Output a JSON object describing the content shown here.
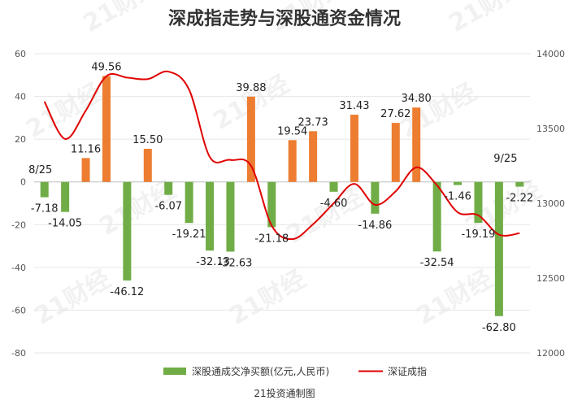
{
  "watermark": "21财经",
  "chart_data": {
    "type": "bar",
    "title": "深成指走势与深股通资金情况",
    "source": "21投资通制图",
    "date_labels": [
      {
        "index": 0,
        "text": "8/25"
      },
      {
        "index": 22,
        "text": "9/25"
      }
    ],
    "left_axis": {
      "min": -80,
      "max": 60,
      "step": 20
    },
    "right_axis": {
      "min": 12000,
      "max": 14000,
      "step": 500
    },
    "series": [
      {
        "name": "深股通成交净买额(亿元,人民币)",
        "kind": "bar",
        "axis": "left",
        "values": [
          -7.18,
          -14.05,
          11.16,
          49.56,
          -46.12,
          15.5,
          -6.07,
          -19.21,
          -32.13,
          -32.63,
          39.88,
          -21.18,
          19.54,
          23.73,
          -4.6,
          31.43,
          -14.86,
          27.62,
          34.8,
          -32.54,
          -1.46,
          -19.19,
          -62.8,
          -2.22
        ],
        "labels": [
          "-7.18",
          "-14.05",
          "11.16",
          "49.56",
          "-46.12",
          "15.50",
          "-6.07",
          "-19.21",
          "-32.13",
          "-32.63",
          "39.88",
          "-21.18",
          "19.54",
          "23.73",
          "-4.60",
          "31.43",
          "-14.86",
          "27.62",
          "34.80",
          "-32.54",
          "-1.46",
          "-19.19",
          "-62.80",
          "-2.22"
        ],
        "color_positive": "#ED7D31",
        "color_negative": "#70AD47"
      },
      {
        "name": "深证成指",
        "kind": "line",
        "axis": "right",
        "values": [
          13680,
          13430,
          13620,
          13850,
          13840,
          13830,
          13880,
          13760,
          13310,
          13290,
          13250,
          12850,
          12760,
          12860,
          13000,
          13130,
          12990,
          13080,
          13240,
          13120,
          12940,
          12920,
          12790,
          12800
        ],
        "color": "#E00000"
      }
    ]
  }
}
